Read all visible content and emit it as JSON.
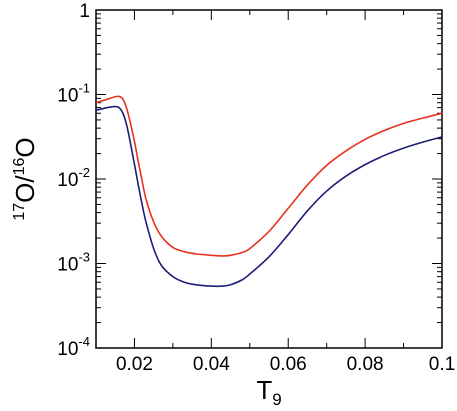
{
  "chart_data": {
    "type": "line",
    "xlabel": {
      "base": "T",
      "sub": "9"
    },
    "ylabel": {
      "sup1": "17",
      "base1": "O/",
      "sup2": "16",
      "base2": "O"
    },
    "xlim": [
      0.01,
      0.1
    ],
    "ylim": [
      0.0001,
      1
    ],
    "yscale": "log",
    "grid": false,
    "x_ticks": [
      {
        "value": 0.02,
        "label": "0.02"
      },
      {
        "value": 0.04,
        "label": "0.04"
      },
      {
        "value": 0.06,
        "label": "0.06"
      },
      {
        "value": 0.08,
        "label": "0.08"
      },
      {
        "value": 0.1,
        "label": "0.1"
      }
    ],
    "y_ticks": [
      {
        "value": 1,
        "base": "1",
        "exp": ""
      },
      {
        "value": 0.1,
        "base": "10",
        "exp": "-1"
      },
      {
        "value": 0.01,
        "base": "10",
        "exp": "-2"
      },
      {
        "value": 0.001,
        "base": "10",
        "exp": "-3"
      },
      {
        "value": 0.0001,
        "base": "10",
        "exp": "-4"
      }
    ],
    "series": [
      {
        "color": "#e8321e",
        "x": [
          0.01,
          0.013,
          0.015,
          0.016,
          0.017,
          0.018,
          0.019,
          0.02,
          0.021,
          0.022,
          0.023,
          0.025,
          0.027,
          0.03,
          0.033,
          0.036,
          0.04,
          0.043,
          0.045,
          0.048,
          0.05,
          0.055,
          0.06,
          0.065,
          0.07,
          0.075,
          0.08,
          0.085,
          0.09,
          0.095,
          0.1
        ],
        "y": [
          0.08,
          0.088,
          0.094,
          0.095,
          0.088,
          0.068,
          0.045,
          0.028,
          0.016,
          0.0095,
          0.0058,
          0.0031,
          0.0021,
          0.00155,
          0.00138,
          0.0013,
          0.00125,
          0.00123,
          0.00125,
          0.00135,
          0.0015,
          0.0024,
          0.0045,
          0.0085,
          0.0145,
          0.0215,
          0.0295,
          0.0375,
          0.0455,
          0.0525,
          0.06
        ]
      },
      {
        "color": "#1e1e78",
        "x": [
          0.01,
          0.013,
          0.015,
          0.016,
          0.017,
          0.018,
          0.019,
          0.02,
          0.021,
          0.022,
          0.023,
          0.025,
          0.027,
          0.03,
          0.033,
          0.036,
          0.04,
          0.043,
          0.045,
          0.048,
          0.05,
          0.055,
          0.06,
          0.065,
          0.07,
          0.075,
          0.08,
          0.085,
          0.09,
          0.095,
          0.1
        ],
        "y": [
          0.065,
          0.07,
          0.072,
          0.07,
          0.06,
          0.043,
          0.026,
          0.015,
          0.0085,
          0.005,
          0.0031,
          0.0015,
          0.00095,
          0.0007,
          0.0006,
          0.00056,
          0.00054,
          0.00054,
          0.00056,
          0.00064,
          0.00075,
          0.0012,
          0.0022,
          0.0042,
          0.0072,
          0.0108,
          0.0148,
          0.019,
          0.0232,
          0.0273,
          0.0315
        ]
      }
    ]
  }
}
